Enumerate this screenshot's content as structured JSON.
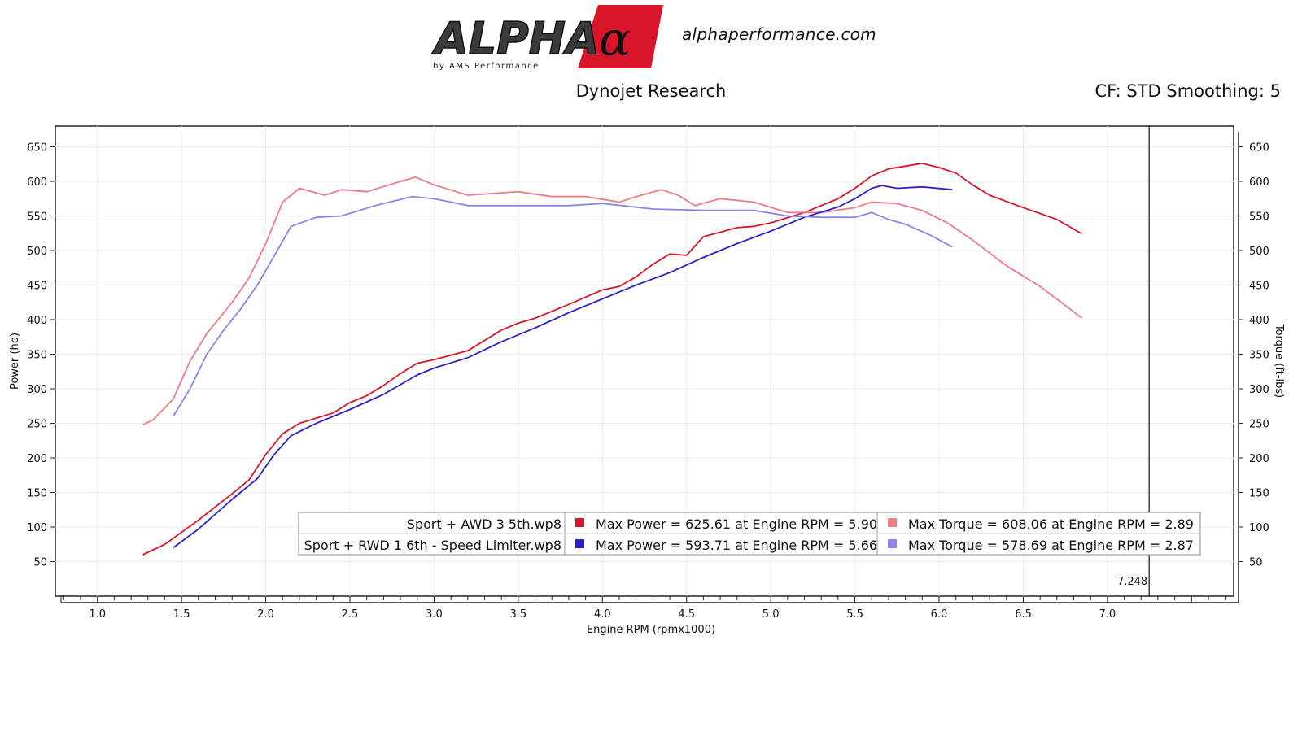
{
  "header": {
    "logo_text": "ALPHA",
    "logo_sub": "by AMS Performance",
    "site": "alphaperformance.com",
    "title": "Dynojet Research",
    "cf": "CF: STD Smoothing: 5"
  },
  "colors": {
    "power_awd": "#d9152a",
    "torque_awd": "#ef7b85",
    "power_rwd": "#2a22c8",
    "torque_rwd": "#8a84ec"
  },
  "chart_data": {
    "type": "line",
    "title": "Dynojet Research",
    "xlabel": "Engine RPM (rpmx1000)",
    "ylabel": "Power (hp)",
    "ylabel_right": "Torque (ft-lbs)",
    "xlim": [
      0.75,
      7.75
    ],
    "ylim": [
      0,
      680
    ],
    "xticks": [
      "1.0",
      "1.5",
      "2.0",
      "2.5",
      "3.0",
      "3.5",
      "4.0",
      "4.5",
      "5.0",
      "5.5",
      "6.0",
      "6.5",
      "7.0"
    ],
    "yticks": [
      "50",
      "100",
      "150",
      "200",
      "250",
      "300",
      "350",
      "400",
      "450",
      "500",
      "550",
      "600",
      "650"
    ],
    "cursor": {
      "x": 7.248,
      "label": "7.248"
    },
    "series": [
      {
        "name": "Sport + AWD 3 5th.wp8 Power",
        "key": "power_awd",
        "x": [
          1.27,
          1.4,
          1.6,
          1.8,
          1.9,
          2.0,
          2.1,
          2.2,
          2.4,
          2.5,
          2.6,
          2.7,
          2.8,
          2.9,
          3.0,
          3.2,
          3.4,
          3.5,
          3.6,
          3.8,
          4.0,
          4.1,
          4.2,
          4.3,
          4.4,
          4.5,
          4.6,
          4.8,
          4.9,
          5.0,
          5.2,
          5.4,
          5.5,
          5.6,
          5.7,
          5.8,
          5.9,
          6.0,
          6.1,
          6.2,
          6.3,
          6.5,
          6.7,
          6.85
        ],
        "y": [
          60,
          75,
          110,
          148,
          168,
          205,
          235,
          250,
          265,
          280,
          290,
          305,
          322,
          337,
          342,
          355,
          385,
          395,
          402,
          422,
          443,
          448,
          462,
          480,
          495,
          493,
          520,
          533,
          535,
          540,
          555,
          575,
          590,
          608,
          618,
          622,
          626,
          620,
          612,
          595,
          580,
          562,
          545,
          524
        ]
      },
      {
        "name": "Sport + AWD 3 5th.wp8 Torque",
        "key": "torque_awd",
        "x": [
          1.27,
          1.33,
          1.45,
          1.55,
          1.65,
          1.8,
          1.9,
          2.0,
          2.1,
          2.2,
          2.35,
          2.45,
          2.6,
          2.8,
          2.89,
          3.0,
          3.2,
          3.5,
          3.7,
          3.9,
          4.1,
          4.2,
          4.35,
          4.45,
          4.55,
          4.7,
          4.9,
          5.1,
          5.3,
          5.5,
          5.6,
          5.75,
          5.9,
          6.05,
          6.2,
          6.4,
          6.6,
          6.85
        ],
        "y": [
          248,
          255,
          285,
          340,
          380,
          425,
          460,
          510,
          570,
          590,
          580,
          588,
          585,
          600,
          606,
          595,
          580,
          585,
          578,
          578,
          570,
          578,
          588,
          580,
          565,
          575,
          570,
          555,
          555,
          562,
          570,
          568,
          558,
          540,
          515,
          478,
          448,
          402
        ]
      },
      {
        "name": "Sport + RWD 1 6th - Speed Limiter.wp8 Power",
        "key": "power_rwd",
        "x": [
          1.45,
          1.6,
          1.8,
          1.95,
          2.05,
          2.15,
          2.3,
          2.5,
          2.7,
          2.9,
          3.0,
          3.2,
          3.4,
          3.6,
          3.8,
          4.0,
          4.2,
          4.4,
          4.6,
          4.8,
          5.0,
          5.2,
          5.4,
          5.5,
          5.6,
          5.66,
          5.75,
          5.9,
          6.08
        ],
        "y": [
          70,
          97,
          140,
          170,
          205,
          232,
          250,
          270,
          292,
          320,
          330,
          345,
          368,
          388,
          410,
          430,
          450,
          468,
          490,
          510,
          528,
          548,
          563,
          575,
          590,
          594,
          590,
          592,
          588
        ]
      },
      {
        "name": "Sport + RWD 1 6th - Speed Limiter.wp8 Torque",
        "key": "torque_rwd",
        "x": [
          1.45,
          1.55,
          1.65,
          1.75,
          1.85,
          1.95,
          2.05,
          2.15,
          2.3,
          2.45,
          2.65,
          2.87,
          3.0,
          3.2,
          3.5,
          3.8,
          4.0,
          4.3,
          4.6,
          4.9,
          5.1,
          5.3,
          5.5,
          5.6,
          5.7,
          5.8,
          5.95,
          6.08
        ],
        "y": [
          260,
          300,
          350,
          385,
          415,
          450,
          492,
          535,
          548,
          550,
          565,
          578,
          575,
          565,
          565,
          565,
          568,
          560,
          558,
          558,
          550,
          548,
          548,
          555,
          545,
          538,
          522,
          505
        ]
      }
    ],
    "legend": {
      "placement": "bottom-center",
      "rows": [
        {
          "file": "Sport + AWD 3 5th.wp8",
          "power": "Max Power = 625.61 at Engine RPM = 5.90",
          "torque": "Max Torque = 608.06 at Engine RPM = 2.89",
          "power_key": "power_awd",
          "torque_key": "torque_awd"
        },
        {
          "file": "Sport + RWD 1 6th - Speed Limiter.wp8",
          "power": "Max Power = 593.71 at Engine RPM = 5.66",
          "torque": "Max Torque = 578.69 at Engine RPM = 2.87",
          "power_key": "power_rwd",
          "torque_key": "torque_rwd"
        }
      ]
    }
  }
}
